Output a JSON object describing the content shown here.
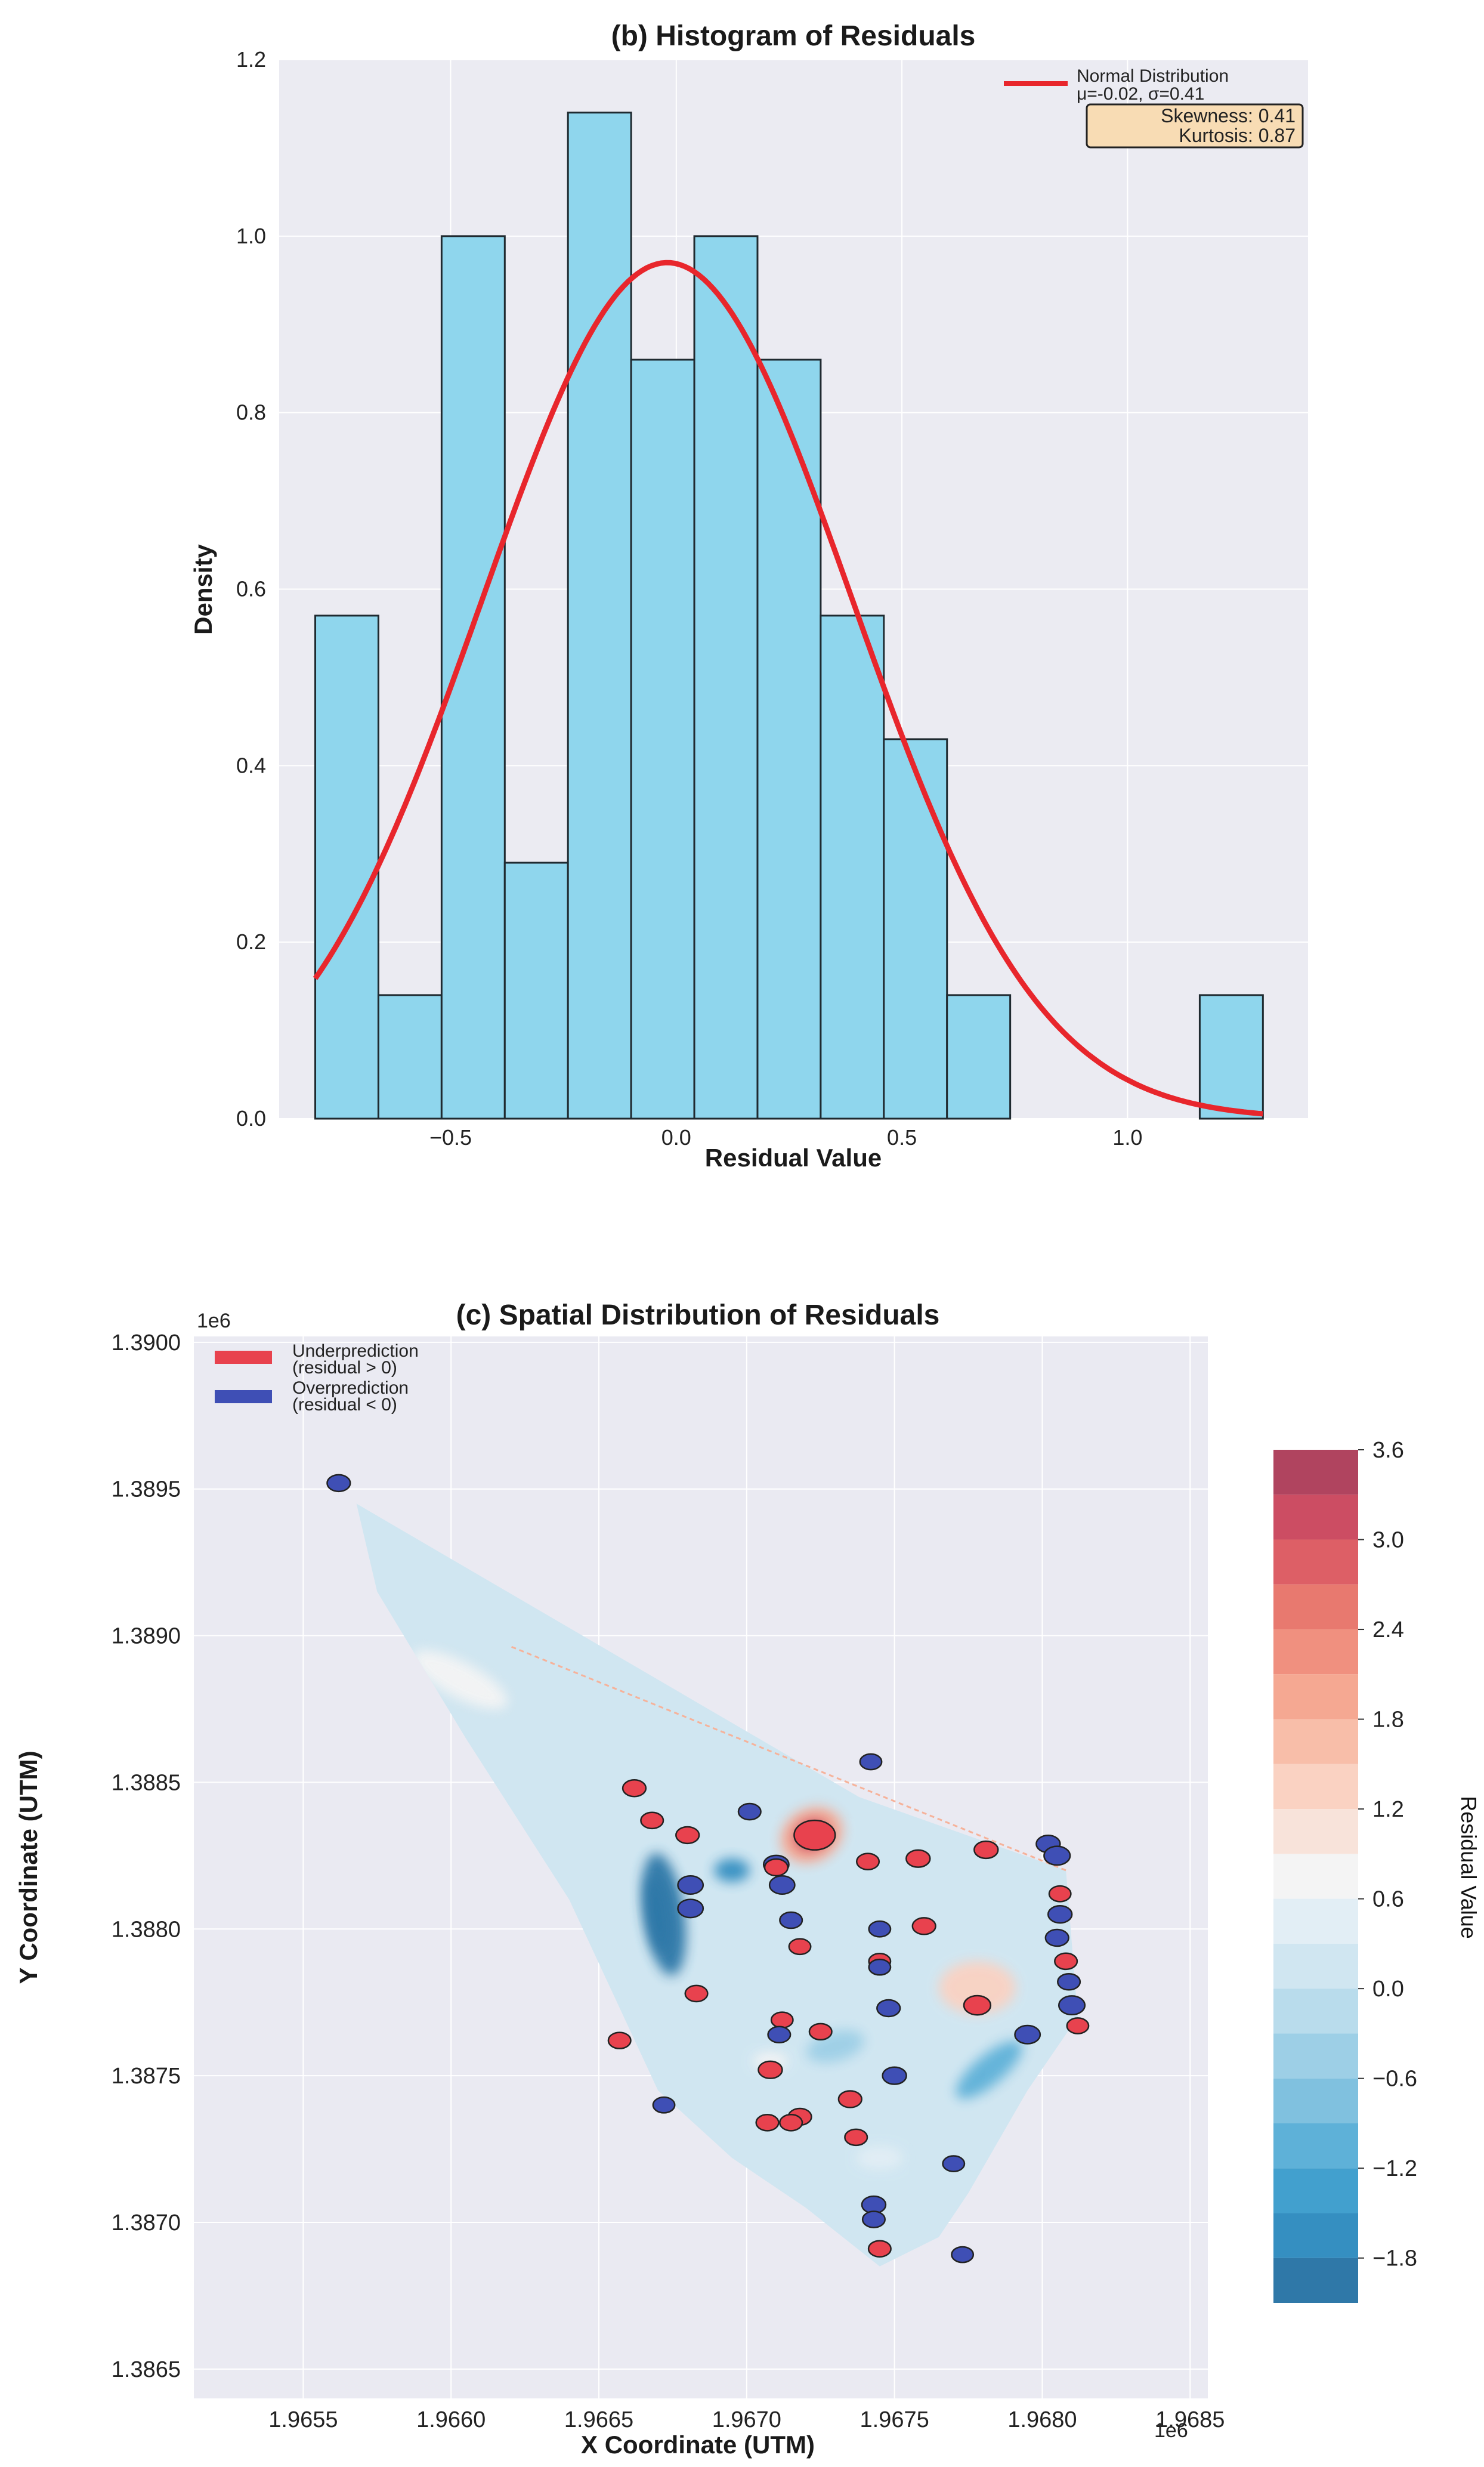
{
  "chart_data": [
    {
      "type": "bar",
      "title": "(b) Histogram of Residuals",
      "xlabel": "Residual Value",
      "ylabel": "Density",
      "xlim": [
        -0.88,
        1.4
      ],
      "ylim": [
        0,
        1.2
      ],
      "x_ticks": [
        "−0.5",
        "0.0",
        "0.5",
        "1.0"
      ],
      "x_tick_values": [
        -0.5,
        0.0,
        0.5,
        1.0
      ],
      "y_ticks": [
        "0.0",
        "0.2",
        "0.4",
        "0.6",
        "0.8",
        "1.0",
        "1.2"
      ],
      "y_tick_values": [
        0,
        0.2,
        0.4,
        0.6,
        0.8,
        1.0,
        1.2
      ],
      "grid": true,
      "bins": [
        {
          "x0": -0.8,
          "x1": -0.66,
          "density": 0.57
        },
        {
          "x0": -0.66,
          "x1": -0.52,
          "density": 0.14
        },
        {
          "x0": -0.52,
          "x1": -0.38,
          "density": 1.0
        },
        {
          "x0": -0.38,
          "x1": -0.24,
          "density": 0.29
        },
        {
          "x0": -0.24,
          "x1": -0.1,
          "density": 1.14
        },
        {
          "x0": -0.1,
          "x1": 0.04,
          "density": 0.86
        },
        {
          "x0": 0.04,
          "x1": 0.18,
          "density": 1.0
        },
        {
          "x0": 0.18,
          "x1": 0.32,
          "density": 0.86
        },
        {
          "x0": 0.32,
          "x1": 0.46,
          "density": 0.57
        },
        {
          "x0": 0.46,
          "x1": 0.6,
          "density": 0.43
        },
        {
          "x0": 0.6,
          "x1": 0.74,
          "density": 0.14
        },
        {
          "x0": 0.74,
          "x1": 0.88,
          "density": 0.0
        },
        {
          "x0": 0.88,
          "x1": 1.02,
          "density": 0.0
        },
        {
          "x0": 1.02,
          "x1": 1.16,
          "density": 0.0
        },
        {
          "x0": 1.16,
          "x1": 1.3,
          "density": 0.14
        }
      ],
      "normal_fit": {
        "mu": -0.02,
        "sigma": 0.41,
        "x_range": [
          -0.8,
          1.3
        ]
      },
      "legend": {
        "position": "top-right",
        "line1": "Normal Distribution",
        "line2": "μ=-0.02, σ=0.41"
      },
      "stats_box": {
        "skewness": "Skewness: 0.41",
        "kurtosis": "Kurtosis: 0.87"
      },
      "colors": {
        "bar": "#8fd6ed",
        "bar_edge": "#1f2a30",
        "curve": "#e8262c",
        "stats_box": "#f8dcb4",
        "panel": "#ebebf2"
      }
    },
    {
      "type": "scatter",
      "title": "(c) Spatial Distribution of Residuals",
      "xlabel": "X Coordinate (UTM)",
      "ylabel": "Y Coordinate (UTM)",
      "x_offset_label": "1e6",
      "y_offset_label": "1e6",
      "xlim": [
        1.96513,
        1.96856
      ],
      "ylim": [
        1.3864,
        1.39002
      ],
      "x_ticks": [
        "1.9655",
        "1.9660",
        "1.9665",
        "1.9670",
        "1.9675",
        "1.9680",
        "1.9685"
      ],
      "x_tick_values": [
        1.9655,
        1.966,
        1.9665,
        1.967,
        1.9675,
        1.968,
        1.9685
      ],
      "y_ticks": [
        "1.3865",
        "1.3870",
        "1.3875",
        "1.3880",
        "1.3885",
        "1.3890",
        "1.3895",
        "1.3900"
      ],
      "y_tick_values": [
        1.3865,
        1.387,
        1.3875,
        1.388,
        1.3885,
        1.389,
        1.3895,
        1.39
      ],
      "grid": true,
      "legend": {
        "position": "top-left",
        "under_line1": "Underprediction",
        "under_line2": "(residual > 0)",
        "over_line1": "Overprediction",
        "over_line2": "(residual < 0)"
      },
      "colorbar": {
        "label": "Residual Value",
        "ticks": [
          "3.6",
          "3.0",
          "2.4",
          "1.8",
          "1.2",
          "0.6",
          "0.0",
          "−0.6",
          "−1.2",
          "−1.8"
        ],
        "tick_values": [
          3.6,
          3.0,
          2.4,
          1.8,
          1.2,
          0.6,
          0.0,
          -0.6,
          -1.2,
          -1.8
        ],
        "range": [
          -2.1,
          3.6
        ],
        "levels": [
          {
            "lo": 3.3,
            "hi": 3.6,
            "color": "#b0445f"
          },
          {
            "lo": 3.0,
            "hi": 3.3,
            "color": "#cc4d63"
          },
          {
            "lo": 2.7,
            "hi": 3.0,
            "color": "#dd5f66"
          },
          {
            "lo": 2.4,
            "hi": 2.7,
            "color": "#e8796f"
          },
          {
            "lo": 2.1,
            "hi": 2.4,
            "color": "#f0907f"
          },
          {
            "lo": 1.8,
            "hi": 2.1,
            "color": "#f5a892"
          },
          {
            "lo": 1.5,
            "hi": 1.8,
            "color": "#f8bea9"
          },
          {
            "lo": 1.2,
            "hi": 1.5,
            "color": "#fad2c2"
          },
          {
            "lo": 0.9,
            "hi": 1.2,
            "color": "#f8e3da"
          },
          {
            "lo": 0.6,
            "hi": 0.9,
            "color": "#f4f4f4"
          },
          {
            "lo": 0.3,
            "hi": 0.6,
            "color": "#e2eef5"
          },
          {
            "lo": 0.0,
            "hi": 0.3,
            "color": "#d0e6f1"
          },
          {
            "lo": -0.3,
            "hi": 0.0,
            "color": "#b9dcec"
          },
          {
            "lo": -0.6,
            "hi": -0.3,
            "color": "#9dcfe6"
          },
          {
            "lo": -0.9,
            "hi": -0.6,
            "color": "#80c1df"
          },
          {
            "lo": -1.2,
            "hi": -0.9,
            "color": "#5eb1d8"
          },
          {
            "lo": -1.5,
            "hi": -1.2,
            "color": "#42a0ce"
          },
          {
            "lo": -1.8,
            "hi": -1.5,
            "color": "#358fc1"
          },
          {
            "lo": -2.1,
            "hi": -1.8,
            "color": "#2f78a8"
          }
        ]
      },
      "hull": [
        [
          1.96568,
          1.38945
        ],
        [
          1.96738,
          1.38845
        ],
        [
          1.96808,
          1.3882
        ],
        [
          1.96812,
          1.3877
        ],
        [
          1.96795,
          1.38745
        ],
        [
          1.96775,
          1.3871
        ],
        [
          1.96765,
          1.38695
        ],
        [
          1.96745,
          1.38685
        ],
        [
          1.9672,
          1.38705
        ],
        [
          1.96695,
          1.38722
        ],
        [
          1.9667,
          1.38745
        ],
        [
          1.9664,
          1.3881
        ],
        [
          1.96605,
          1.38865
        ],
        [
          1.96575,
          1.38915
        ]
      ],
      "blobs": [
        {
          "x": 1.96603,
          "y": 1.38885,
          "rx": 0.00018,
          "ry": 6e-05,
          "rot": 28,
          "value": 0.7
        },
        {
          "x": 1.96672,
          "y": 1.38805,
          "rx": 7e-05,
          "ry": 0.00021,
          "rot": -8,
          "value": -1.9
        },
        {
          "x": 1.9667,
          "y": 1.38805,
          "rx": 3.5e-05,
          "ry": 0.00013,
          "rot": -8,
          "value": -2.1
        },
        {
          "x": 1.96695,
          "y": 1.3882,
          "rx": 6e-05,
          "ry": 4e-05,
          "rot": 0,
          "value": -1.7
        },
        {
          "x": 1.96722,
          "y": 1.38832,
          "rx": 0.00011,
          "ry": 9e-05,
          "rot": -30,
          "value": 2.0
        },
        {
          "x": 1.96722,
          "y": 1.38832,
          "rx": 6e-05,
          "ry": 5e-05,
          "rot": -30,
          "value": 3.2
        },
        {
          "x": 1.96778,
          "y": 1.3878,
          "rx": 0.00013,
          "ry": 9e-05,
          "rot": 0,
          "value": 1.2
        },
        {
          "x": 1.96708,
          "y": 1.38755,
          "rx": 6e-05,
          "ry": 3e-05,
          "rot": 0,
          "value": 0.8
        },
        {
          "x": 1.96782,
          "y": 1.38752,
          "rx": 0.00014,
          "ry": 5e-05,
          "rot": -40,
          "value": -1.0
        },
        {
          "x": 1.9673,
          "y": 1.3876,
          "rx": 0.0001,
          "ry": 5e-05,
          "rot": -15,
          "value": -0.5
        },
        {
          "x": 1.96745,
          "y": 1.38722,
          "rx": 8e-05,
          "ry": 4e-05,
          "rot": 0,
          "value": 0.3
        }
      ],
      "points": [
        {
          "x": 1.96562,
          "y": 1.38952,
          "r": -0.9
        },
        {
          "x": 1.96742,
          "y": 1.38857,
          "r": -0.7
        },
        {
          "x": 1.96662,
          "y": 1.38848,
          "r": 0.9
        },
        {
          "x": 1.96701,
          "y": 1.3884,
          "r": -0.8
        },
        {
          "x": 1.96668,
          "y": 1.38837,
          "r": 0.8
        },
        {
          "x": 1.9668,
          "y": 1.38832,
          "r": 0.9
        },
        {
          "x": 1.96723,
          "y": 1.38832,
          "r": 3.4
        },
        {
          "x": 1.96781,
          "y": 1.38827,
          "r": 1.0
        },
        {
          "x": 1.96802,
          "y": 1.38829,
          "r": -1.0
        },
        {
          "x": 1.96805,
          "y": 1.38825,
          "r": -1.3
        },
        {
          "x": 1.96758,
          "y": 1.38824,
          "r": 1.0
        },
        {
          "x": 1.96741,
          "y": 1.38823,
          "r": 0.8
        },
        {
          "x": 1.9671,
          "y": 1.38822,
          "r": -1.2
        },
        {
          "x": 1.9671,
          "y": 1.38821,
          "r": 0.9
        },
        {
          "x": 1.96681,
          "y": 1.38815,
          "r": -1.2
        },
        {
          "x": 1.96712,
          "y": 1.38815,
          "r": -1.2
        },
        {
          "x": 1.96806,
          "y": 1.38812,
          "r": 0.7
        },
        {
          "x": 1.96681,
          "y": 1.38807,
          "r": -1.2
        },
        {
          "x": 1.96806,
          "y": 1.38805,
          "r": -1.0
        },
        {
          "x": 1.96715,
          "y": 1.38803,
          "r": -0.8
        },
        {
          "x": 1.9676,
          "y": 1.38801,
          "r": 0.9
        },
        {
          "x": 1.96745,
          "y": 1.388,
          "r": -0.7
        },
        {
          "x": 1.96805,
          "y": 1.38797,
          "r": -0.9
        },
        {
          "x": 1.96718,
          "y": 1.38794,
          "r": 0.7
        },
        {
          "x": 1.96808,
          "y": 1.38789,
          "r": 0.8
        },
        {
          "x": 1.96745,
          "y": 1.38789,
          "r": 0.7
        },
        {
          "x": 1.96745,
          "y": 1.38787,
          "r": -0.7
        },
        {
          "x": 1.96809,
          "y": 1.38782,
          "r": -0.8
        },
        {
          "x": 1.96683,
          "y": 1.38778,
          "r": 0.8
        },
        {
          "x": 1.96778,
          "y": 1.38774,
          "r": 1.4
        },
        {
          "x": 1.9681,
          "y": 1.38774,
          "r": -1.3
        },
        {
          "x": 1.96748,
          "y": 1.38773,
          "r": -0.9
        },
        {
          "x": 1.96712,
          "y": 1.38769,
          "r": 0.7
        },
        {
          "x": 1.96812,
          "y": 1.38767,
          "r": 0.7
        },
        {
          "x": 1.96725,
          "y": 1.38765,
          "r": 0.8
        },
        {
          "x": 1.96711,
          "y": 1.38764,
          "r": -0.8
        },
        {
          "x": 1.96795,
          "y": 1.38764,
          "r": -1.2
        },
        {
          "x": 1.96657,
          "y": 1.38762,
          "r": 0.8
        },
        {
          "x": 1.96708,
          "y": 1.38752,
          "r": 1.0
        },
        {
          "x": 1.9675,
          "y": 1.3875,
          "r": -1.0
        },
        {
          "x": 1.96735,
          "y": 1.38742,
          "r": 0.9
        },
        {
          "x": 1.96672,
          "y": 1.3874,
          "r": -0.7
        },
        {
          "x": 1.96718,
          "y": 1.38736,
          "r": 0.9
        },
        {
          "x": 1.96715,
          "y": 1.38734,
          "r": 0.8
        },
        {
          "x": 1.96707,
          "y": 1.38734,
          "r": 0.8
        },
        {
          "x": 1.96737,
          "y": 1.38729,
          "r": 0.8
        },
        {
          "x": 1.9677,
          "y": 1.3872,
          "r": -0.7
        },
        {
          "x": 1.96743,
          "y": 1.38706,
          "r": -1.0
        },
        {
          "x": 1.96743,
          "y": 1.38701,
          "r": -0.8
        },
        {
          "x": 1.96745,
          "y": 1.38691,
          "r": 0.8
        },
        {
          "x": 1.96773,
          "y": 1.38689,
          "r": -0.7
        }
      ],
      "colors": {
        "under": "#e8424e",
        "over": "#3f4fb5",
        "edge": "#222222",
        "panel": "#eaeaf2",
        "faint_edge": "#f6b29a"
      }
    }
  ]
}
